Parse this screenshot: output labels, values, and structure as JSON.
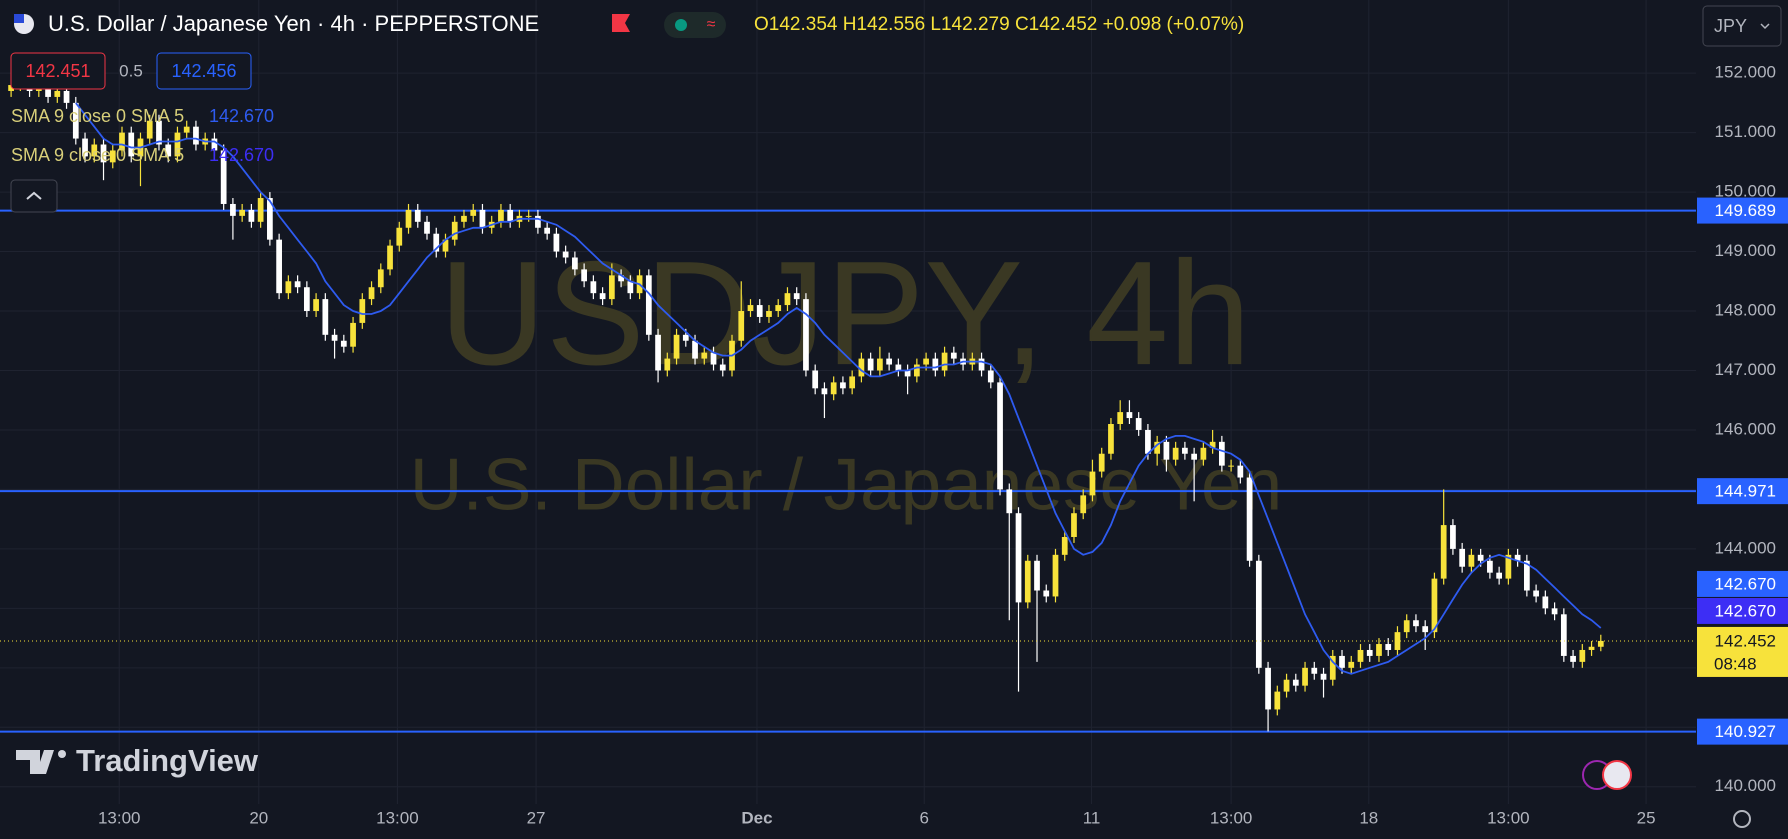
{
  "toolbar": {
    "symbol_title": "U.S. Dollar / Japanese Yen · 4h · PEPPERSTONE",
    "ohlc": "O142.354 H142.556 L142.279 C142.452 +0.098 (+0.07%)",
    "sell_price": "142.451",
    "spread": "0.5",
    "buy_price": "142.456",
    "currency": "JPY"
  },
  "watermark": {
    "symbol": "USDJPY, 4h",
    "description": "U.S. Dollar / Japanese Yen"
  },
  "brand": "TradingView",
  "chart_data": {
    "type": "candlestick",
    "up_color": "#f7e23b",
    "down_color": "#ffffff",
    "grid": true,
    "xlim": [
      -1.2,
      182.3
    ],
    "xticks": [
      {
        "value": 11.7,
        "label": "13:00"
      },
      {
        "value": 26.8,
        "label": "20"
      },
      {
        "value": 41.8,
        "label": "13:00"
      },
      {
        "value": 56.8,
        "label": "27"
      },
      {
        "value": 80.7,
        "label": "Dec"
      },
      {
        "value": 98.8,
        "label": "6"
      },
      {
        "value": 116.9,
        "label": "11"
      },
      {
        "value": 132,
        "label": "13:00"
      },
      {
        "value": 146.9,
        "label": "18"
      },
      {
        "value": 162,
        "label": "13:00"
      },
      {
        "value": 176.9,
        "label": "25"
      }
    ],
    "ylim": [
      139.71,
      153.23
    ],
    "yticks": [
      {
        "value": 140,
        "label": "140.000"
      },
      {
        "value": 141,
        "label": "141.000"
      },
      {
        "value": 142,
        "label": "142.000"
      },
      {
        "value": 143,
        "label": "143.000"
      },
      {
        "value": 144,
        "label": "144.000"
      },
      {
        "value": 145,
        "label": "145.000"
      },
      {
        "value": 146,
        "label": "146.000"
      },
      {
        "value": 147,
        "label": "147.000"
      },
      {
        "value": 148,
        "label": "148.000"
      },
      {
        "value": 149,
        "label": "149.000"
      },
      {
        "value": 150,
        "label": "150.000"
      },
      {
        "value": 151,
        "label": "151.000"
      },
      {
        "value": 152,
        "label": "152.000"
      }
    ],
    "open": [
      151.7,
      151.8,
      151.9,
      151.7,
      151.8,
      151.6,
      151.7,
      151.5,
      150.9,
      150.6,
      150.8,
      150.5,
      150.7,
      151.0,
      150.6,
      150.9,
      151.2,
      150.8,
      150.6,
      151.0,
      151.1,
      150.8,
      150.9,
      150.7,
      149.8,
      149.6,
      149.7,
      149.5,
      149.9,
      149.2,
      148.3,
      148.5,
      148.4,
      148.0,
      148.2,
      147.6,
      147.5,
      147.4,
      147.8,
      148.2,
      148.4,
      148.7,
      149.1,
      149.4,
      149.7,
      149.5,
      149.3,
      149.0,
      149.2,
      149.5,
      149.6,
      149.7,
      149.4,
      149.5,
      149.7,
      149.5,
      149.6,
      149.6,
      149.4,
      149.3,
      149.0,
      148.9,
      148.7,
      148.5,
      148.3,
      148.2,
      148.6,
      148.5,
      148.3,
      148.6,
      147.6,
      147.0,
      147.2,
      147.6,
      147.5,
      147.2,
      147.3,
      147.1,
      147.0,
      147.5,
      148.0,
      148.1,
      147.9,
      148.0,
      148.1,
      148.3,
      148.2,
      147.0,
      146.7,
      146.6,
      146.8,
      146.7,
      146.9,
      147.2,
      147.0,
      147.2,
      147.1,
      147.0,
      146.9,
      147.1,
      147.2,
      147.0,
      147.3,
      147.2,
      147.1,
      147.2,
      147.0,
      146.8,
      145.0,
      144.6,
      143.1,
      143.8,
      143.3,
      143.2,
      143.9,
      144.2,
      144.6,
      144.9,
      145.3,
      145.6,
      146.1,
      146.3,
      146.2,
      146.0,
      145.6,
      145.8,
      145.5,
      145.7,
      145.6,
      145.5,
      145.7,
      145.8,
      145.4,
      145.4,
      145.2,
      143.8,
      142.0,
      141.3,
      141.6,
      141.8,
      141.7,
      142.0,
      141.9,
      141.8,
      142.2,
      142.0,
      142.1,
      142.3,
      142.2,
      142.4,
      142.3,
      142.6,
      142.8,
      142.7,
      142.6,
      143.5,
      144.4,
      144.0,
      143.7,
      143.9,
      143.8,
      143.6,
      143.5,
      143.9,
      143.8,
      143.3,
      143.2,
      143.0,
      142.9,
      142.2,
      142.1,
      142.3,
      142.354
    ],
    "high": [
      151.9,
      152.0,
      152.0,
      151.9,
      151.9,
      151.8,
      151.8,
      151.6,
      151.0,
      150.9,
      150.9,
      150.8,
      151.1,
      151.1,
      151.0,
      151.3,
      151.3,
      150.9,
      151.1,
      151.2,
      151.2,
      151.0,
      151.0,
      150.8,
      149.9,
      149.8,
      149.8,
      150.0,
      150.0,
      149.3,
      148.6,
      148.6,
      148.5,
      148.3,
      148.3,
      147.7,
      147.6,
      147.9,
      148.3,
      148.5,
      148.8,
      149.2,
      149.5,
      149.8,
      149.8,
      149.6,
      149.4,
      149.3,
      149.6,
      149.7,
      149.8,
      149.8,
      149.6,
      149.8,
      149.8,
      149.7,
      149.7,
      149.7,
      149.5,
      149.4,
      149.1,
      149.0,
      148.8,
      148.6,
      148.4,
      148.8,
      148.7,
      148.6,
      148.7,
      148.7,
      147.7,
      147.3,
      147.7,
      147.7,
      147.6,
      147.4,
      147.4,
      147.2,
      147.6,
      148.5,
      148.2,
      148.2,
      148.1,
      148.2,
      148.4,
      148.4,
      148.3,
      147.1,
      146.8,
      146.9,
      146.9,
      147.0,
      147.3,
      147.3,
      147.4,
      147.3,
      147.2,
      147.1,
      147.2,
      147.3,
      147.3,
      147.4,
      147.4,
      147.3,
      147.3,
      147.3,
      147.1,
      146.9,
      145.1,
      144.7,
      143.9,
      143.9,
      143.4,
      144.0,
      144.3,
      144.7,
      145.0,
      145.5,
      145.7,
      146.2,
      146.5,
      146.5,
      146.3,
      146.1,
      145.9,
      145.9,
      145.8,
      145.8,
      145.7,
      145.8,
      146.0,
      145.9,
      145.5,
      145.5,
      145.3,
      143.9,
      142.1,
      141.7,
      141.9,
      141.9,
      142.1,
      142.1,
      142.0,
      142.3,
      142.3,
      142.2,
      142.4,
      142.4,
      142.5,
      142.5,
      142.7,
      142.9,
      142.9,
      142.8,
      143.6,
      145.0,
      144.5,
      144.1,
      144.0,
      144.0,
      143.9,
      143.7,
      144.0,
      144.0,
      143.9,
      143.4,
      143.3,
      143.1,
      143.0,
      142.3,
      142.4,
      142.45,
      142.556
    ],
    "low": [
      151.6,
      151.7,
      151.6,
      151.6,
      151.5,
      151.5,
      151.4,
      150.8,
      150.5,
      150.5,
      150.2,
      150.4,
      150.6,
      150.5,
      150.1,
      150.8,
      150.7,
      150.5,
      150.5,
      150.9,
      150.7,
      150.7,
      150.6,
      149.7,
      149.2,
      149.5,
      149.4,
      149.4,
      149.1,
      148.2,
      148.2,
      148.3,
      147.9,
      147.9,
      147.5,
      147.2,
      147.3,
      147.3,
      147.7,
      148.1,
      148.3,
      148.6,
      149.0,
      149.3,
      149.4,
      149.2,
      148.9,
      148.9,
      149.1,
      149.4,
      149.5,
      149.3,
      149.3,
      149.4,
      149.4,
      149.4,
      149.5,
      149.3,
      149.2,
      148.9,
      148.8,
      148.6,
      148.4,
      148.2,
      148.1,
      148.1,
      148.4,
      148.2,
      148.2,
      147.5,
      146.8,
      146.9,
      147.1,
      147.4,
      147.1,
      147.1,
      147.0,
      146.9,
      146.9,
      147.4,
      147.9,
      147.8,
      147.8,
      147.9,
      148.0,
      148.1,
      146.9,
      146.6,
      146.2,
      146.5,
      146.6,
      146.6,
      146.8,
      146.9,
      146.9,
      147.0,
      146.9,
      146.6,
      146.8,
      147.0,
      146.9,
      146.9,
      147.1,
      147.0,
      147.0,
      146.9,
      146.7,
      144.9,
      142.8,
      141.6,
      143.0,
      142.1,
      143.1,
      143.1,
      143.8,
      144.1,
      144.5,
      144.8,
      145.2,
      145.5,
      146.0,
      146.1,
      145.9,
      145.5,
      145.4,
      145.3,
      145.4,
      145.5,
      144.8,
      145.4,
      145.6,
      145.3,
      145.3,
      145.1,
      143.7,
      141.9,
      140.93,
      141.2,
      141.5,
      141.6,
      141.6,
      141.8,
      141.5,
      141.7,
      141.9,
      141.9,
      142.0,
      142.1,
      142.1,
      142.2,
      142.2,
      142.5,
      142.6,
      142.3,
      142.5,
      143.4,
      143.9,
      143.6,
      143.6,
      143.7,
      143.5,
      143.4,
      143.4,
      143.7,
      143.2,
      143.1,
      142.9,
      142.8,
      142.1,
      142.0,
      142.0,
      142.2,
      142.279
    ],
    "close": [
      151.8,
      151.9,
      151.7,
      151.8,
      151.6,
      151.7,
      151.5,
      150.9,
      150.6,
      150.8,
      150.5,
      150.7,
      151.0,
      150.6,
      150.9,
      151.2,
      150.8,
      150.6,
      151.0,
      151.1,
      150.8,
      150.9,
      150.7,
      149.8,
      149.6,
      149.7,
      149.5,
      149.9,
      149.2,
      148.3,
      148.5,
      148.4,
      148.0,
      148.2,
      147.6,
      147.5,
      147.4,
      147.8,
      148.2,
      148.4,
      148.7,
      149.1,
      149.4,
      149.7,
      149.5,
      149.3,
      149.0,
      149.2,
      149.5,
      149.6,
      149.7,
      149.4,
      149.5,
      149.7,
      149.5,
      149.6,
      149.6,
      149.4,
      149.3,
      149.0,
      148.9,
      148.7,
      148.5,
      148.3,
      148.2,
      148.6,
      148.5,
      148.3,
      148.6,
      147.6,
      147.0,
      147.2,
      147.6,
      147.5,
      147.2,
      147.3,
      147.1,
      147.0,
      147.5,
      148.0,
      148.1,
      147.9,
      148.0,
      148.1,
      148.3,
      148.2,
      147.0,
      146.7,
      146.6,
      146.8,
      146.7,
      146.9,
      147.2,
      147.0,
      147.2,
      147.1,
      147.0,
      146.9,
      147.1,
      147.2,
      147.0,
      147.3,
      147.2,
      147.1,
      147.2,
      147.0,
      146.8,
      145.0,
      144.6,
      143.1,
      143.8,
      143.3,
      143.2,
      143.9,
      144.2,
      144.6,
      144.9,
      145.3,
      145.6,
      146.1,
      146.3,
      146.2,
      146.0,
      145.6,
      145.8,
      145.5,
      145.7,
      145.6,
      145.5,
      145.7,
      145.8,
      145.4,
      145.4,
      145.2,
      143.8,
      142.0,
      141.3,
      141.6,
      141.8,
      141.7,
      142.0,
      141.9,
      141.8,
      142.2,
      142.0,
      142.1,
      142.3,
      142.2,
      142.4,
      142.3,
      142.6,
      142.8,
      142.7,
      142.6,
      143.5,
      144.4,
      144.0,
      143.7,
      143.9,
      143.8,
      143.6,
      143.5,
      143.9,
      143.8,
      143.3,
      143.2,
      143.0,
      142.9,
      142.2,
      142.1,
      142.3,
      142.354,
      142.452
    ],
    "sma": {
      "color": "#2e5bf0",
      "values": [
        null,
        null,
        null,
        null,
        null,
        null,
        null,
        151.5,
        151.3,
        151.1,
        150.9,
        150.8,
        150.8,
        150.75,
        150.75,
        150.8,
        150.85,
        150.85,
        150.85,
        150.9,
        150.9,
        150.85,
        150.85,
        150.75,
        150.6,
        150.4,
        150.2,
        150.0,
        149.85,
        149.6,
        149.4,
        149.2,
        149.0,
        148.8,
        148.5,
        148.3,
        148.1,
        148.0,
        147.95,
        147.95,
        148.0,
        148.1,
        148.3,
        148.5,
        148.7,
        148.9,
        149.05,
        149.2,
        149.3,
        149.35,
        149.4,
        149.4,
        149.45,
        149.5,
        149.5,
        149.55,
        149.55,
        149.55,
        149.5,
        149.45,
        149.35,
        149.25,
        149.1,
        148.95,
        148.8,
        148.7,
        148.6,
        148.5,
        148.45,
        148.3,
        148.1,
        147.95,
        147.8,
        147.65,
        147.5,
        147.4,
        147.3,
        147.25,
        147.25,
        147.35,
        147.5,
        147.6,
        147.7,
        147.8,
        147.95,
        148.05,
        147.95,
        147.8,
        147.6,
        147.45,
        147.3,
        147.15,
        147.0,
        146.9,
        146.9,
        146.95,
        147.0,
        147.0,
        147.05,
        147.05,
        147.05,
        147.1,
        147.1,
        147.15,
        147.15,
        147.15,
        147.1,
        146.9,
        146.6,
        146.2,
        145.8,
        145.4,
        145.0,
        144.6,
        144.3,
        144.0,
        143.9,
        143.95,
        144.1,
        144.4,
        144.8,
        145.1,
        145.4,
        145.6,
        145.75,
        145.85,
        145.9,
        145.9,
        145.85,
        145.8,
        145.7,
        145.65,
        145.6,
        145.5,
        145.3,
        144.9,
        144.5,
        144.1,
        143.7,
        143.3,
        142.9,
        142.6,
        142.3,
        142.1,
        141.95,
        141.9,
        141.95,
        142.0,
        142.05,
        142.1,
        142.2,
        142.3,
        142.4,
        142.5,
        142.65,
        142.9,
        143.15,
        143.4,
        143.6,
        143.75,
        143.85,
        143.9,
        143.85,
        143.8,
        143.75,
        143.65,
        143.5,
        143.35,
        143.2,
        143.05,
        142.9,
        142.8,
        142.67
      ]
    },
    "legend_rows": [
      {
        "text": "SMA 9 close 0 SMA 5",
        "value": {
          "value": 142.67,
          "label": "142.670"
        }
      },
      {
        "text": "SMA 9 close 0 SMA 5",
        "value": {
          "value": 142.67,
          "label": "142.670"
        }
      }
    ],
    "level_color": "#2962ff",
    "levels": [
      {
        "value": 149.689,
        "label": "149.689"
      },
      {
        "value": 144.971,
        "label": "144.971"
      },
      {
        "value": 140.927,
        "label": "140.927"
      }
    ],
    "last_price": {
      "value": 142.452,
      "label": "142.452",
      "countdown": "08:48",
      "color": "#f7e23b"
    }
  }
}
